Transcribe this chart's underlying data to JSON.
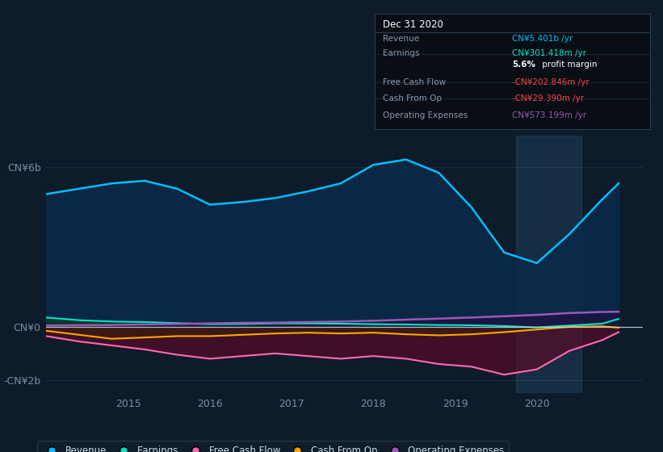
{
  "bg_color": "#0d1b2a",
  "plot_bg_color": "#0d1b2a",
  "years": [
    2014.0,
    2014.4,
    2014.8,
    2015.2,
    2015.6,
    2016.0,
    2016.4,
    2016.8,
    2017.2,
    2017.6,
    2018.0,
    2018.4,
    2018.8,
    2019.2,
    2019.6,
    2020.0,
    2020.4,
    2020.8,
    2021.0
  ],
  "revenue": [
    5.0,
    5.2,
    5.4,
    5.5,
    5.2,
    4.6,
    4.7,
    4.85,
    5.1,
    5.4,
    6.1,
    6.3,
    5.8,
    4.5,
    2.8,
    2.4,
    3.5,
    4.8,
    5.4
  ],
  "earnings": [
    0.35,
    0.25,
    0.2,
    0.18,
    0.14,
    0.1,
    0.11,
    0.13,
    0.13,
    0.12,
    0.1,
    0.09,
    0.07,
    0.06,
    0.03,
    -0.02,
    0.05,
    0.12,
    0.3
  ],
  "free_cash_flow": [
    -0.35,
    -0.55,
    -0.7,
    -0.85,
    -1.05,
    -1.2,
    -1.1,
    -1.0,
    -1.1,
    -1.2,
    -1.1,
    -1.2,
    -1.4,
    -1.5,
    -1.8,
    -1.6,
    -0.9,
    -0.5,
    -0.2
  ],
  "cash_from_op": [
    -0.15,
    -0.3,
    -0.45,
    -0.4,
    -0.35,
    -0.35,
    -0.3,
    -0.25,
    -0.22,
    -0.25,
    -0.22,
    -0.28,
    -0.32,
    -0.28,
    -0.2,
    -0.1,
    0.0,
    0.02,
    -0.03
  ],
  "operating_exp": [
    0.05,
    0.06,
    0.07,
    0.09,
    0.11,
    0.13,
    0.15,
    0.16,
    0.18,
    0.2,
    0.23,
    0.27,
    0.31,
    0.35,
    0.4,
    0.45,
    0.52,
    0.56,
    0.57
  ],
  "revenue_color": "#00bfff",
  "earnings_color": "#00e5c8",
  "fcf_color": "#ff69b4",
  "cfop_color": "#ffa500",
  "opex_color": "#9b59b6",
  "grid_color": "#1e3a4a",
  "axis_label_color": "#7a8fa0",
  "zero_line_color": "#ccddee",
  "ylim": [
    -2.5,
    7.2
  ],
  "yticks": [
    -2,
    0,
    6
  ],
  "ytick_labels": [
    "-CN¥2b",
    "CN¥0",
    "CN¥6b"
  ],
  "xlim": [
    2014.0,
    2021.3
  ],
  "xtick_years": [
    2015,
    2016,
    2017,
    2018,
    2019,
    2020
  ],
  "legend_labels": [
    "Revenue",
    "Earnings",
    "Free Cash Flow",
    "Cash From Op",
    "Operating Expenses"
  ],
  "legend_colors": [
    "#00bfff",
    "#00e5c8",
    "#ff69b4",
    "#ffa500",
    "#9b59b6"
  ],
  "info_box": {
    "title": "Dec 31 2020",
    "rows": [
      {
        "label": "Revenue",
        "value": "CN¥5.401b /yr",
        "color": "#00bfff"
      },
      {
        "label": "Earnings",
        "value": "CN¥301.418m /yr",
        "color": "#00e5c8"
      },
      {
        "label": "",
        "value": "5.6%",
        "value2": " profit margin",
        "color": "#ffffff"
      },
      {
        "label": "Free Cash Flow",
        "value": "-CN¥202.846m /yr",
        "color": "#ff4444"
      },
      {
        "label": "Cash From Op",
        "value": "-CN¥29.390m /yr",
        "color": "#ff4444"
      },
      {
        "label": "Operating Expenses",
        "value": "CN¥573.199m /yr",
        "color": "#9b59b6"
      }
    ]
  },
  "highlight_x0": 2019.75,
  "highlight_x1": 2020.55
}
